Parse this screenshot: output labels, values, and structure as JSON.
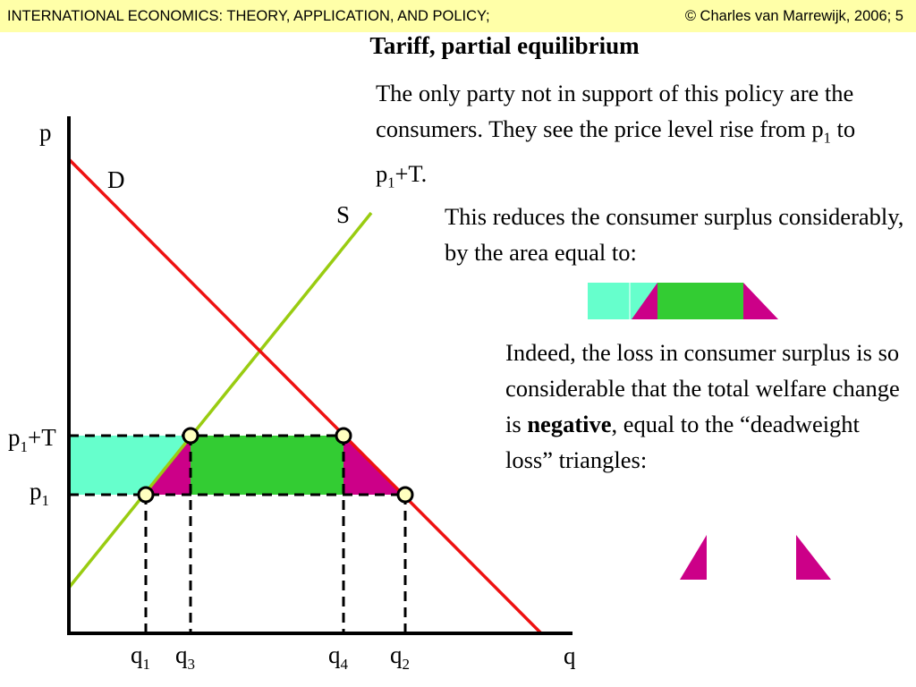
{
  "header": {
    "left": "INTERNATIONAL ECONOMICS: THEORY, APPLICATION, AND POLICY;",
    "right": "© Charles van Marrewijk, 2006; 5"
  },
  "slide": {
    "title": "Tariff, partial equilibrium",
    "para1": {
      "before": "The only party not in support of this policy are the consumers. They see the price level rise from p",
      "sub1": "1",
      "mid": " to p",
      "sub2": "1",
      "after": "+T."
    },
    "para2": "This reduces the consumer surplus considerably, by the area equal to:",
    "para3": {
      "before": "Indeed, the loss in consumer surplus is so considerable that the total welfare change is ",
      "bold": "negative",
      "after": ", equal to the “deadweight loss” triangles:"
    }
  },
  "diagram": {
    "axis_y_label": "p",
    "axis_x_label": "q",
    "demand_label": "D",
    "supply_label": "S",
    "price_high_label": {
      "base": "p",
      "sub": "1",
      "suffix": "+T"
    },
    "price_low_label": {
      "base": "p",
      "sub": "1"
    },
    "quantity_labels": [
      {
        "base": "q",
        "sub": "1"
      },
      {
        "base": "q",
        "sub": "3"
      },
      {
        "base": "q",
        "sub": "4"
      },
      {
        "base": "q",
        "sub": "2"
      }
    ]
  },
  "colors": {
    "demand": "#ee1111",
    "supply": "#99cc11",
    "cyan_area": "#66ffcc",
    "green_area": "#33cc33",
    "magenta_area": "#cc0088",
    "point_fill": "#ffffc0",
    "header_bg": "#ffffa8"
  }
}
